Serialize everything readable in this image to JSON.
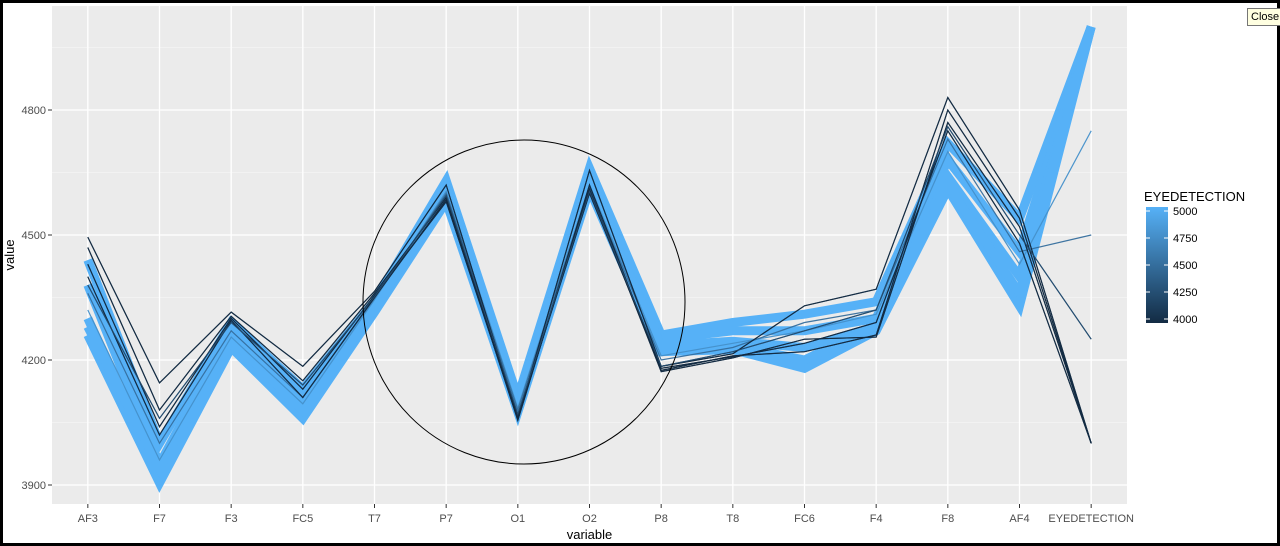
{
  "tooltip": {
    "label": "Close"
  },
  "chart_data": {
    "type": "line",
    "subtype": "parallel-coordinates",
    "xlabel": "variable",
    "ylabel": "value",
    "categories": [
      "AF3",
      "F7",
      "F3",
      "FC5",
      "T7",
      "P7",
      "O1",
      "O2",
      "P8",
      "T8",
      "FC6",
      "F4",
      "F8",
      "AF4",
      "EYEDETECTION"
    ],
    "y_ticks": [
      3900,
      4200,
      4500,
      4800
    ],
    "y_tick_labels": [
      "3900",
      "4200",
      "4500",
      "4800"
    ],
    "ylim": [
      3870,
      4980
    ],
    "grid": true,
    "legend": {
      "title": "EYEDETECTION",
      "position": "right",
      "type": "colorbar",
      "range": [
        4000,
        5000
      ],
      "ticks": [
        5000,
        4750,
        4500,
        4250,
        4000
      ],
      "tick_labels": [
        "5000",
        "4750",
        "4500",
        "4250",
        "4000"
      ],
      "low_color": "#132b43",
      "high_color": "#56b1f7"
    },
    "series": [
      {
        "eyedetection": 4000,
        "values": [
          4495,
          4145,
          4315,
          4185,
          4365,
          4620,
          4060,
          4655,
          4185,
          4215,
          4330,
          4370,
          4830,
          4560,
          4000
        ]
      },
      {
        "eyedetection": 4000,
        "values": [
          4470,
          4080,
          4305,
          4150,
          4360,
          4590,
          4055,
          4620,
          4175,
          4210,
          4220,
          4260,
          4800,
          4540,
          4000
        ]
      },
      {
        "eyedetection": 4000,
        "values": [
          4430,
          4040,
          4300,
          4130,
          4355,
          4580,
          4060,
          4610,
          4172,
          4205,
          4250,
          4255,
          4770,
          4520,
          4000
        ]
      },
      {
        "eyedetection": 4000,
        "values": [
          4400,
          4020,
          4295,
          4110,
          4350,
          4585,
          4065,
          4600,
          4180,
          4208,
          4240,
          4290,
          4750,
          4480,
          4000
        ]
      },
      {
        "eyedetection": 4250,
        "values": [
          4380,
          4060,
          4290,
          4140,
          4352,
          4595,
          4070,
          4605,
          4185,
          4220,
          4270,
          4320,
          4760,
          4500,
          4250
        ]
      },
      {
        "eyedetection": 4500,
        "values": [
          4360,
          4000,
          4270,
          4110,
          4348,
          4600,
          4080,
          4615,
          4200,
          4230,
          4290,
          4320,
          4730,
          4460,
          4500
        ]
      },
      {
        "eyedetection": 4750,
        "values": [
          4320,
          3960,
          4255,
          4095,
          4345,
          4605,
          4085,
          4620,
          4210,
          4240,
          4270,
          4310,
          4700,
          4430,
          4750
        ]
      },
      {
        "eyedetection": 5000,
        "values": [
          4440,
          4000,
          4290,
          4130,
          4340,
          4630,
          4110,
          4660,
          4260,
          4290,
          4310,
          4340,
          4720,
          4540,
          5000
        ]
      },
      {
        "eyedetection": 5000,
        "values": [
          4380,
          3950,
          4270,
          4100,
          4330,
          4615,
          4100,
          4640,
          4250,
          4270,
          4270,
          4300,
          4680,
          4460,
          5000
        ]
      },
      {
        "eyedetection": 5000,
        "values": [
          4300,
          3920,
          4240,
          4070,
          4320,
          4595,
          4080,
          4625,
          4235,
          4245,
          4230,
          4280,
          4640,
          4400,
          5000
        ]
      },
      {
        "eyedetection": 5000,
        "values": [
          4260,
          3905,
          4230,
          4060,
          4315,
          4580,
          4075,
          4610,
          4220,
          4225,
          4180,
          4270,
          4610,
          4330,
          5000
        ]
      },
      {
        "eyedetection": 5000,
        "values": [
          4280,
          3940,
          4250,
          4080,
          4325,
          4600,
          4085,
          4620,
          4230,
          4235,
          4200,
          4285,
          4620,
          4360,
          5000
        ]
      }
    ]
  }
}
